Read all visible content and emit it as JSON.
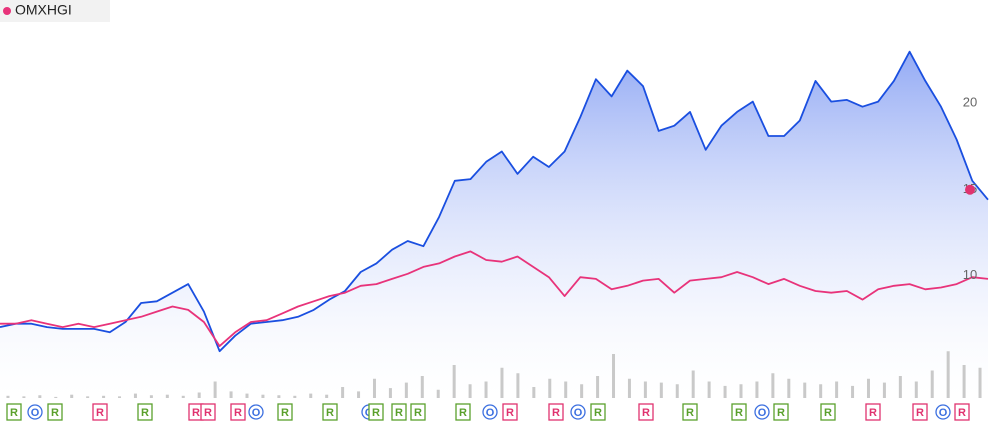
{
  "chart_data": [
    {
      "type": "line",
      "legend": "OMXHGI",
      "ylim": [
        3,
        26
      ],
      "yticks": [
        10,
        15,
        20
      ],
      "grid": false,
      "series": [
        {
          "color": "#1a4fe0",
          "area": true,
          "values": [
            7.0,
            7.2,
            7.2,
            7.0,
            6.9,
            6.9,
            6.9,
            6.7,
            7.3,
            8.4,
            8.5,
            9.0,
            9.5,
            7.9,
            5.6,
            6.5,
            7.2,
            7.3,
            7.4,
            7.6,
            8.0,
            8.6,
            9.1,
            10.2,
            10.7,
            11.5,
            12.0,
            11.7,
            13.4,
            15.5,
            15.6,
            16.6,
            17.2,
            15.9,
            16.9,
            16.3,
            17.2,
            19.2,
            21.4,
            20.4,
            21.9,
            21.0,
            18.4,
            18.7,
            19.5,
            17.3,
            18.7,
            19.5,
            20.1,
            18.1,
            18.1,
            19.0,
            21.3,
            20.1,
            20.2,
            19.8,
            20.1,
            21.3,
            23.0,
            21.3,
            19.8,
            17.9,
            15.5,
            14.4
          ]
        },
        {
          "name": "OMXHGI",
          "color": "#e8337a",
          "values": [
            7.2,
            7.2,
            7.4,
            7.2,
            7.0,
            7.2,
            7.0,
            7.2,
            7.4,
            7.6,
            7.9,
            8.2,
            8.0,
            7.3,
            5.9,
            6.7,
            7.3,
            7.4,
            7.8,
            8.2,
            8.5,
            8.8,
            9.0,
            9.4,
            9.5,
            9.8,
            10.1,
            10.5,
            10.7,
            11.1,
            11.4,
            10.9,
            10.8,
            11.1,
            10.5,
            9.9,
            8.8,
            9.9,
            9.8,
            9.2,
            9.4,
            9.7,
            9.8,
            9.0,
            9.7,
            9.8,
            9.9,
            10.2,
            9.9,
            9.5,
            9.8,
            9.4,
            9.1,
            9.0,
            9.1,
            8.6,
            9.2,
            9.4,
            9.5,
            9.2,
            9.3,
            9.5,
            9.9,
            9.8
          ]
        }
      ]
    },
    {
      "type": "bar",
      "color": "#c9c9c9",
      "ylim": [
        0,
        100
      ],
      "values": [
        4,
        3,
        5,
        2,
        6,
        3,
        4,
        3,
        8,
        5,
        6,
        4,
        10,
        30,
        12,
        8,
        6,
        5,
        4,
        8,
        6,
        20,
        12,
        35,
        18,
        28,
        40,
        15,
        60,
        25,
        30,
        55,
        45,
        20,
        35,
        30,
        25,
        40,
        80,
        35,
        30,
        28,
        25,
        50,
        30,
        22,
        25,
        30,
        45,
        35,
        28,
        25,
        30,
        22,
        35,
        28,
        40,
        30,
        50,
        85,
        60,
        55
      ]
    }
  ],
  "events": [
    {
      "label": "R",
      "color": "#5aa02c"
    },
    {
      "label": "O",
      "color": "#3b6fe0"
    },
    {
      "label": "R",
      "color": "#5aa02c"
    },
    {
      "label": "R",
      "color": "#e0336f"
    },
    {
      "label": "R",
      "color": "#5aa02c"
    },
    {
      "label": "R",
      "color": "#e0336f"
    },
    {
      "label": "R",
      "color": "#e0336f"
    },
    {
      "label": "R",
      "color": "#e0336f"
    },
    {
      "label": "O",
      "color": "#3b6fe0"
    },
    {
      "label": "R",
      "color": "#5aa02c"
    },
    {
      "label": "R",
      "color": "#5aa02c"
    },
    {
      "label": "O",
      "color": "#3b6fe0"
    },
    {
      "label": "R",
      "color": "#5aa02c"
    },
    {
      "label": "R",
      "color": "#5aa02c"
    },
    {
      "label": "R",
      "color": "#5aa02c"
    },
    {
      "label": "R",
      "color": "#5aa02c"
    },
    {
      "label": "O",
      "color": "#3b6fe0"
    },
    {
      "label": "R",
      "color": "#e0336f"
    },
    {
      "label": "R",
      "color": "#e0336f"
    },
    {
      "label": "O",
      "color": "#3b6fe0"
    },
    {
      "label": "R",
      "color": "#5aa02c"
    },
    {
      "label": "R",
      "color": "#e0336f"
    },
    {
      "label": "R",
      "color": "#5aa02c"
    },
    {
      "label": "R",
      "color": "#5aa02c"
    },
    {
      "label": "O",
      "color": "#3b6fe0"
    },
    {
      "label": "R",
      "color": "#5aa02c"
    },
    {
      "label": "R",
      "color": "#5aa02c"
    },
    {
      "label": "R",
      "color": "#e0336f"
    },
    {
      "label": "R",
      "color": "#e0336f"
    },
    {
      "label": "O",
      "color": "#3b6fe0"
    },
    {
      "label": "R",
      "color": "#e0336f"
    }
  ]
}
